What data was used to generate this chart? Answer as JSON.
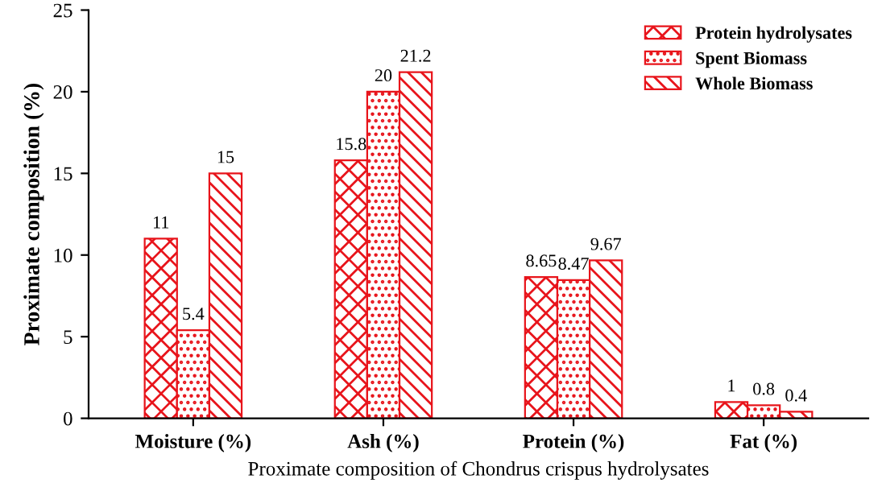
{
  "chart_data": {
    "type": "bar",
    "xlabel": "Proximate composition of Chondrus crispus hydrolysates",
    "ylabel": "Proximate composition (%)",
    "categories": [
      "Moisture (%)",
      "Ash (%)",
      "Protein (%)",
      "Fat (%)"
    ],
    "series": [
      {
        "name": "Protein hydrolysates",
        "color": "#e8141b",
        "values": [
          11,
          15.8,
          8.65,
          1
        ]
      },
      {
        "name": "Spent Biomass",
        "color": "#e8141b",
        "values": [
          5.4,
          20,
          8.47,
          0.8
        ]
      },
      {
        "name": "Whole Biomass",
        "color": "#e8141b",
        "values": [
          15,
          21.2,
          9.67,
          0.4
        ]
      }
    ],
    "ylim": [
      0,
      25
    ],
    "yticks": [
      0,
      5,
      10,
      15,
      20,
      25
    ],
    "data_labels": true,
    "legend": "top right",
    "grid": false
  }
}
